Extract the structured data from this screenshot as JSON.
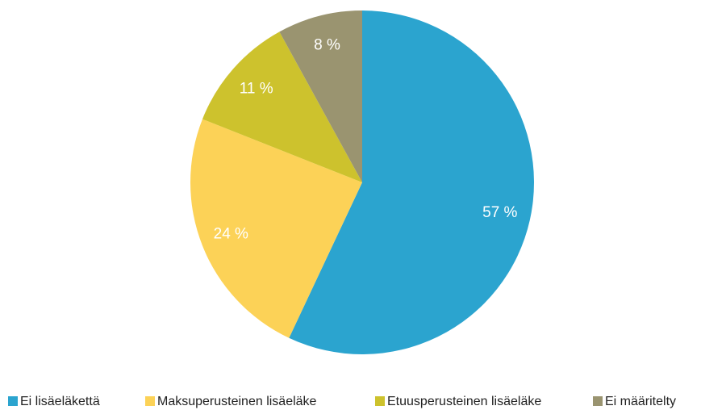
{
  "chart_data": {
    "type": "pie",
    "categories": [
      "Ei lisäeläkettä",
      "Maksuperusteinen lisäeläke",
      "Etuusperusteinen lisäeläke",
      "Ei määritelty"
    ],
    "values": [
      57,
      24,
      11,
      8
    ],
    "value_labels": [
      "57 %",
      "24 %",
      "11 %",
      "8 %"
    ],
    "colors": [
      "#2ba4cf",
      "#fcd257",
      "#cdc22d",
      "#9a9470"
    ],
    "legend": "bottom"
  }
}
